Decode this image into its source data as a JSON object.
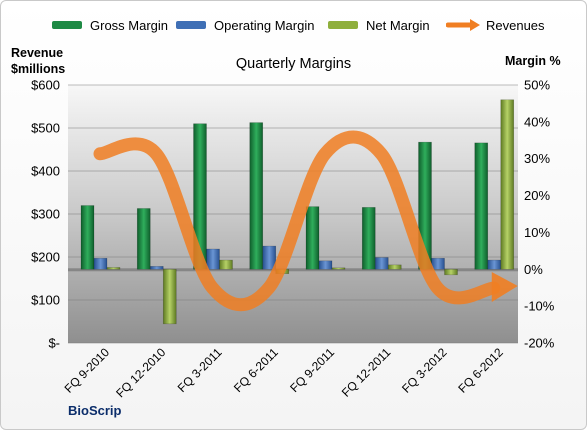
{
  "chart_data": {
    "type": "bar",
    "title": "Quarterly Margins",
    "y_left_title_line1": "Revenue",
    "y_left_title_line2": "$millions",
    "y_right_title": "Margin %",
    "company": "BioScrip",
    "categories": [
      "FQ 9-2010",
      "FQ 12-2010",
      "FQ 3-2011",
      "FQ 6-2011",
      "FQ 9-2011",
      "FQ 12-2011",
      "FQ 3-2012",
      "FQ 6-2012"
    ],
    "left_axis": {
      "ylim": [
        0,
        600
      ],
      "ticks": [
        0,
        100,
        200,
        300,
        400,
        500,
        600
      ],
      "tick_labels": [
        "$-",
        "$100",
        "$200",
        "$300",
        "$400",
        "$500",
        "$600"
      ]
    },
    "right_axis": {
      "ylim": [
        -20,
        50
      ],
      "ticks": [
        -20,
        -10,
        0,
        10,
        20,
        30,
        40,
        50
      ],
      "tick_labels": [
        "-20%",
        "-10%",
        "0%",
        "10%",
        "20%",
        "30%",
        "40%",
        "50%"
      ]
    },
    "series": [
      {
        "name": "Gross Margin",
        "axis": "right",
        "color": "#1e8a45",
        "values": [
          17.3,
          16.5,
          39.5,
          39.8,
          17.0,
          16.8,
          34.5,
          34.3
        ]
      },
      {
        "name": "Operating Margin",
        "axis": "right",
        "color": "#3f6fb5",
        "values": [
          3.0,
          0.8,
          5.5,
          6.3,
          2.3,
          3.2,
          3.0,
          2.5
        ]
      },
      {
        "name": "Net Margin",
        "axis": "right",
        "color": "#8faf3c",
        "values": [
          0.5,
          -14.8,
          2.5,
          -1.2,
          0.4,
          1.2,
          -1.5,
          46.0
        ]
      },
      {
        "name": "Revenues",
        "axis": "left",
        "type": "line",
        "color": "#f07e22",
        "values": [
          440,
          440,
          128,
          128,
          440,
          440,
          128,
          128
        ]
      }
    ],
    "grid": true,
    "legend": "top"
  }
}
